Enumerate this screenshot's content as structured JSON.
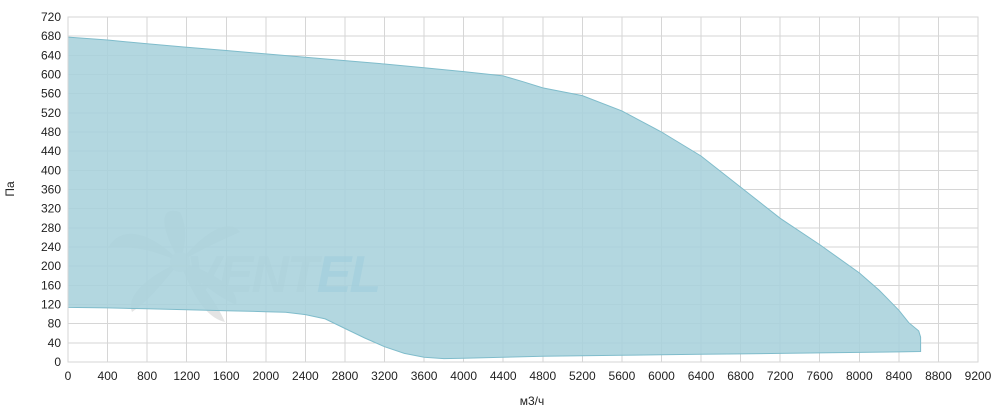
{
  "chart_data": {
    "type": "area",
    "title": "",
    "xlabel": "м3/ч",
    "ylabel": "Па",
    "xlim": [
      0,
      9200
    ],
    "ylim": [
      0,
      720
    ],
    "xticks": [
      0,
      400,
      800,
      1200,
      1600,
      2000,
      2400,
      2800,
      3200,
      3600,
      4000,
      4400,
      4800,
      5200,
      5600,
      6000,
      6400,
      6800,
      7200,
      7600,
      8000,
      8400,
      8800,
      9200
    ],
    "yticks": [
      0,
      40,
      80,
      120,
      160,
      200,
      240,
      280,
      320,
      360,
      400,
      440,
      480,
      520,
      560,
      600,
      640,
      680,
      720
    ],
    "grid": true,
    "fill_color": "#a9d2dc",
    "stroke_color": "#7fbccb",
    "watermark_color": "#c9c9c9",
    "watermark_accent": "#4aa8d8",
    "watermark_text": "VENTEL",
    "series": [
      {
        "role": "upper",
        "x": [
          0,
          400,
          800,
          1200,
          1600,
          2000,
          2400,
          2800,
          3200,
          3600,
          4000,
          4400,
          4600,
          4800,
          5200,
          5600,
          6000,
          6400,
          6800,
          7200,
          7600,
          8000,
          8200,
          8400,
          8500,
          8600,
          8620
        ],
        "y": [
          678,
          672,
          664,
          657,
          650,
          643,
          636,
          629,
          622,
          614,
          606,
          597,
          585,
          572,
          556,
          524,
          480,
          430,
          365,
          300,
          245,
          186,
          150,
          108,
          82,
          65,
          52
        ]
      },
      {
        "role": "lower",
        "x": [
          0,
          400,
          800,
          1200,
          1600,
          2000,
          2200,
          2400,
          2600,
          2800,
          3000,
          3200,
          3400,
          3600,
          3800,
          4000,
          4400,
          4800,
          5200,
          5600,
          6000,
          6400,
          6800,
          7200,
          7600,
          8000,
          8400,
          8620
        ],
        "y": [
          114,
          113,
          111,
          109,
          107,
          105,
          104,
          99,
          90,
          70,
          50,
          32,
          18,
          10,
          7,
          8,
          10,
          12,
          13,
          14,
          15,
          16,
          17,
          18,
          19,
          20,
          21,
          22
        ]
      }
    ]
  }
}
